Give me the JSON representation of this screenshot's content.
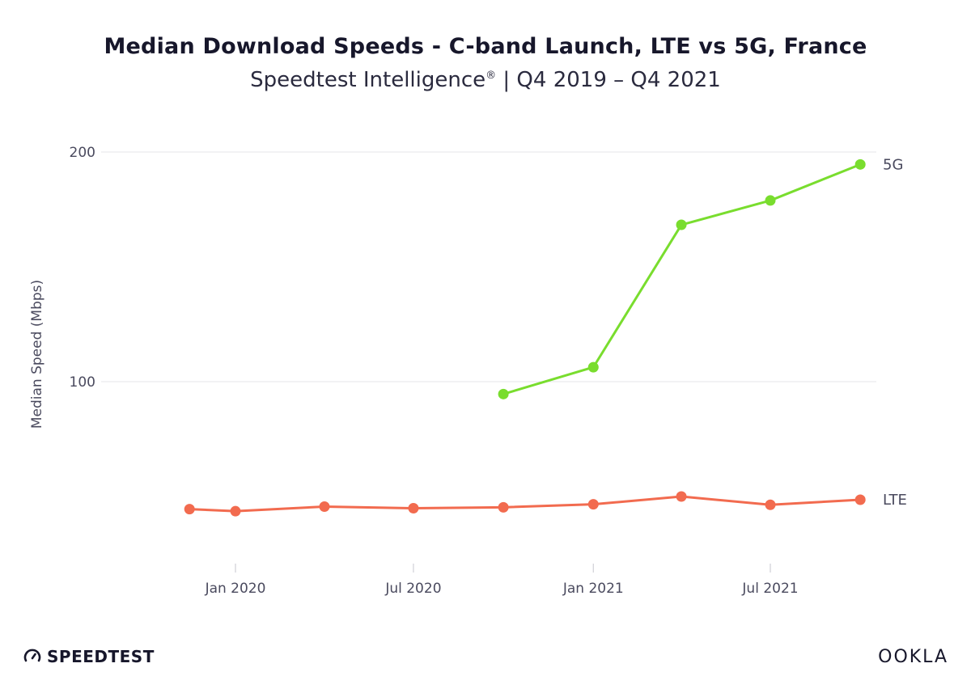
{
  "header": {
    "title": "Median Download Speeds - C-band Launch, LTE vs 5G, France",
    "subtitle_main": "Speedtest Intelligence",
    "subtitle_mark": "®",
    "subtitle_rest": " | Q4 2019 – Q4 2021"
  },
  "branding": {
    "left_logo": "SPEEDTEST",
    "right_logo": "OOKLA"
  },
  "colors": {
    "lte": "#f26b4f",
    "5g": "#79dd2e",
    "grid": "#e6e6ea",
    "axis": "#cfcfd6"
  },
  "chart_data": {
    "type": "line",
    "ylabel": "Median Speed (Mbps)",
    "ylim": [
      0,
      200
    ],
    "y_ticks": [
      100,
      200
    ],
    "x_tick_labels": [
      "Jan 2020",
      "Jul 2020",
      "Jan 2021",
      "Jul 2021"
    ],
    "x_tick_dates": [
      "2020-01-01",
      "2020-07-01",
      "2021-01-01",
      "2021-07-01"
    ],
    "grid": "horizontal",
    "series": [
      {
        "name": "LTE",
        "color_key": "lte",
        "points": [
          {
            "x": "2019-11-15",
            "y": 44.5
          },
          {
            "x": "2020-01-01",
            "y": 43.6
          },
          {
            "x": "2020-04-01",
            "y": 45.6
          },
          {
            "x": "2020-07-01",
            "y": 44.9
          },
          {
            "x": "2020-10-01",
            "y": 45.3
          },
          {
            "x": "2021-01-01",
            "y": 46.6
          },
          {
            "x": "2021-04-01",
            "y": 50.0
          },
          {
            "x": "2021-07-01",
            "y": 46.4
          },
          {
            "x": "2021-10-01",
            "y": 48.6
          }
        ]
      },
      {
        "name": "5G",
        "color_key": "5g",
        "points": [
          {
            "x": "2020-10-01",
            "y": 94.6
          },
          {
            "x": "2021-01-01",
            "y": 106.3
          },
          {
            "x": "2021-04-01",
            "y": 168.3
          },
          {
            "x": "2021-07-01",
            "y": 178.9
          },
          {
            "x": "2021-10-01",
            "y": 194.6
          }
        ]
      }
    ]
  }
}
